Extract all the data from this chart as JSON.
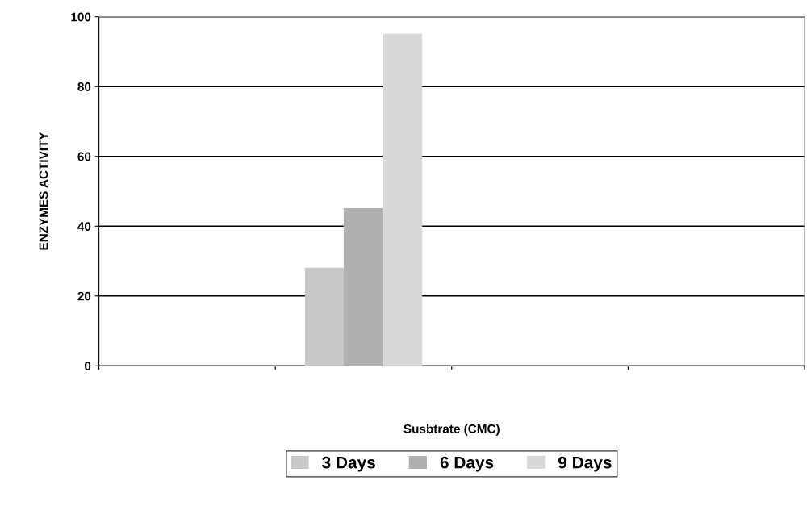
{
  "chart_data": {
    "type": "bar",
    "xlabel": "Susbtrate (CMC)",
    "ylabel": "ENZYMES ACTIVITY",
    "categories": [
      null,
      null,
      null,
      null
    ],
    "series": [
      {
        "name": "3 Days",
        "color": "#c8c8c8",
        "values": [
          null,
          28,
          null,
          null
        ]
      },
      {
        "name": "6 Days",
        "color": "#b0b0b0",
        "values": [
          null,
          45,
          null,
          null
        ]
      },
      {
        "name": "9 Days",
        "color": "#d8d8d8",
        "values": [
          null,
          95,
          null,
          null
        ]
      }
    ],
    "ylim": [
      0,
      100
    ],
    "yticks": [
      0,
      20,
      40,
      60,
      80,
      100
    ],
    "grid": "y",
    "legend": "bottom"
  }
}
